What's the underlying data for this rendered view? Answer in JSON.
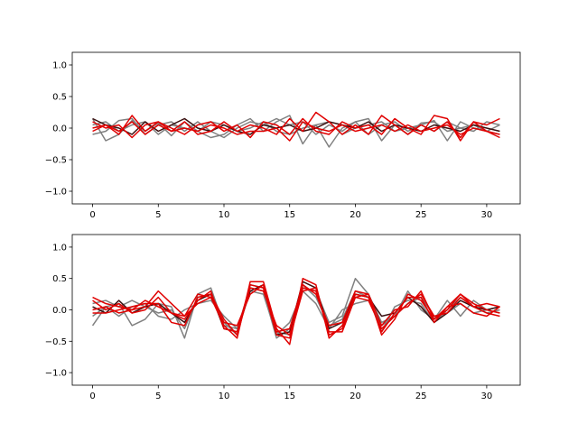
{
  "chart_data": [
    {
      "type": "line",
      "title": "",
      "xlabel": "",
      "ylabel": "",
      "xlim": [
        -1.55,
        32.55
      ],
      "ylim": [
        -1.2,
        1.2
      ],
      "xticks": [
        0,
        5,
        10,
        15,
        20,
        25,
        30
      ],
      "xtick_labels": [
        "0",
        "5",
        "10",
        "15",
        "20",
        "25",
        "30"
      ],
      "yticks": [
        -1.0,
        -0.5,
        0.0,
        0.5,
        1.0
      ],
      "ytick_labels": [
        "−1.0",
        "−0.5",
        "0.0",
        "0.5",
        "1.0"
      ],
      "grid": false,
      "legend": "none",
      "x": [
        0,
        1,
        2,
        3,
        4,
        5,
        6,
        7,
        8,
        9,
        10,
        11,
        12,
        13,
        14,
        15,
        16,
        17,
        18,
        19,
        20,
        21,
        22,
        23,
        24,
        25,
        26,
        27,
        28,
        29,
        30,
        31
      ],
      "series": [
        {
          "color": "#808080",
          "values": [
            0.15,
            -0.2,
            -0.1,
            0.12,
            -0.05,
            0.08,
            -0.12,
            0.1,
            -0.05,
            -0.15,
            -0.1,
            0.05,
            0.15,
            -0.05,
            0.1,
            0.2,
            -0.25,
            0.05,
            -0.3,
            0.0,
            0.1,
            0.15,
            -0.2,
            0.05,
            -0.1,
            0.08,
            0.1,
            -0.05,
            0.0,
            -0.05,
            0.1,
            0.05
          ]
        },
        {
          "color": "#808080",
          "values": [
            -0.1,
            -0.05,
            0.12,
            0.15,
            -0.1,
            0.05,
            0.1,
            -0.05,
            0.1,
            -0.05,
            -0.15,
            0.0,
            0.1,
            0.05,
            0.15,
            0.05,
            0.1,
            -0.1,
            0.05,
            -0.05,
            0.1,
            -0.1,
            0.05,
            0.1,
            -0.05,
            0.05,
            0.12,
            -0.2,
            0.1,
            0.0,
            -0.05,
            -0.1
          ]
        },
        {
          "color": "#808080",
          "values": [
            0.05,
            0.1,
            -0.05,
            0.05,
            0.1,
            -0.1,
            0.05,
            0.0,
            -0.05,
            0.1,
            0.05,
            -0.05,
            0.0,
            0.1,
            -0.05,
            -0.1,
            0.0,
            0.05,
            0.1,
            -0.1,
            0.0,
            0.05,
            0.1,
            -0.05,
            0.0,
            0.05,
            -0.05,
            0.1,
            0.0,
            0.05,
            -0.05,
            0.05
          ]
        },
        {
          "color": "#3a1010",
          "values": [
            0.15,
            0.05,
            0.0,
            -0.1,
            0.1,
            -0.05,
            0.05,
            0.15,
            0.0,
            -0.05,
            0.05,
            -0.05,
            -0.1,
            0.05,
            0.0,
            0.05,
            -0.05,
            0.0,
            0.1,
            0.05,
            0.0,
            0.1,
            -0.05,
            0.05,
            0.0,
            -0.05,
            0.05,
            0.0,
            -0.05,
            0.05,
            0.0,
            -0.05
          ]
        },
        {
          "color": "#e00000",
          "values": [
            -0.05,
            0.05,
            -0.1,
            0.2,
            -0.05,
            0.1,
            -0.05,
            0.1,
            -0.1,
            -0.05,
            0.1,
            -0.05,
            0.05,
            0.0,
            -0.1,
            0.15,
            -0.05,
            0.25,
            0.1,
            -0.1,
            0.05,
            -0.1,
            0.2,
            0.05,
            -0.1,
            0.05,
            -0.05,
            0.1,
            -0.15,
            0.1,
            -0.05,
            -0.1
          ]
        },
        {
          "color": "#e00000",
          "values": [
            0.1,
            0.0,
            0.05,
            -0.15,
            0.05,
            0.1,
            0.0,
            -0.1,
            0.05,
            0.1,
            -0.05,
            0.05,
            -0.15,
            0.1,
            0.05,
            -0.1,
            0.15,
            -0.05,
            -0.1,
            0.1,
            0.0,
            0.05,
            -0.1,
            0.15,
            0.0,
            -0.1,
            0.2,
            0.15,
            -0.2,
            0.1,
            0.05,
            0.15
          ]
        },
        {
          "color": "#e00000",
          "values": [
            0.0,
            0.05,
            -0.05,
            0.1,
            -0.1,
            0.05,
            -0.05,
            0.0,
            -0.05,
            0.05,
            0.0,
            -0.1,
            -0.05,
            -0.05,
            0.0,
            -0.2,
            0.1,
            0.0,
            -0.05,
            0.05,
            -0.05,
            0.0,
            0.05,
            -0.05,
            0.05,
            -0.05,
            0.0,
            0.05,
            -0.1,
            0.0,
            -0.05,
            -0.15
          ]
        }
      ]
    },
    {
      "type": "line",
      "title": "",
      "xlabel": "",
      "ylabel": "",
      "xlim": [
        -1.55,
        32.55
      ],
      "ylim": [
        -1.2,
        1.2
      ],
      "xticks": [
        0,
        5,
        10,
        15,
        20,
        25,
        30
      ],
      "xtick_labels": [
        "0",
        "5",
        "10",
        "15",
        "20",
        "25",
        "30"
      ],
      "yticks": [
        -1.0,
        -0.5,
        0.0,
        0.5,
        1.0
      ],
      "ytick_labels": [
        "−1.0",
        "−0.5",
        "0.0",
        "0.5",
        "1.0"
      ],
      "grid": false,
      "legend": "none",
      "x": [
        0,
        1,
        2,
        3,
        4,
        5,
        6,
        7,
        8,
        9,
        10,
        11,
        12,
        13,
        14,
        15,
        16,
        17,
        18,
        19,
        20,
        21,
        22,
        23,
        24,
        25,
        26,
        27,
        28,
        29,
        30,
        31
      ],
      "series": [
        {
          "color": "#808080",
          "values": [
            -0.25,
            0.05,
            0.1,
            -0.25,
            -0.15,
            0.1,
            0.05,
            -0.45,
            0.25,
            0.35,
            -0.25,
            -0.3,
            0.35,
            0.3,
            -0.45,
            -0.3,
            0.35,
            0.3,
            -0.2,
            -0.1,
            0.5,
            0.25,
            -0.2,
            -0.1,
            0.3,
            0.0,
            -0.15,
            0.15,
            -0.1,
            0.15,
            0.0,
            0.05
          ]
        },
        {
          "color": "#808080",
          "values": [
            0.1,
            0.15,
            0.05,
            0.15,
            0.05,
            -0.05,
            0.0,
            -0.3,
            0.2,
            0.25,
            -0.2,
            -0.4,
            0.4,
            0.35,
            -0.35,
            -0.4,
            0.4,
            0.2,
            -0.25,
            -0.15,
            0.3,
            0.2,
            -0.35,
            0.05,
            0.15,
            0.1,
            -0.2,
            0.0,
            0.2,
            0.05,
            -0.05,
            0.0
          ]
        },
        {
          "color": "#808080",
          "values": [
            -0.1,
            0.05,
            -0.1,
            0.05,
            0.1,
            -0.1,
            -0.15,
            0.0,
            0.1,
            0.15,
            -0.1,
            -0.3,
            0.3,
            0.25,
            -0.4,
            -0.2,
            0.3,
            0.1,
            -0.3,
            0.0,
            0.1,
            0.15,
            -0.25,
            -0.1,
            0.1,
            0.2,
            -0.1,
            -0.05,
            0.1,
            -0.05,
            0.0,
            -0.05
          ]
        },
        {
          "color": "#3a1010",
          "values": [
            0.05,
            -0.05,
            0.15,
            -0.05,
            0.05,
            0.1,
            -0.05,
            -0.2,
            0.15,
            0.25,
            -0.3,
            -0.35,
            0.3,
            0.4,
            -0.4,
            -0.35,
            0.45,
            0.35,
            -0.3,
            -0.2,
            0.25,
            0.2,
            -0.1,
            -0.05,
            0.2,
            0.05,
            -0.2,
            -0.05,
            0.15,
            0.05,
            0.0,
            0.05
          ]
        },
        {
          "color": "#e00000",
          "values": [
            0.2,
            0.1,
            0.05,
            0.0,
            0.05,
            0.3,
            0.1,
            -0.1,
            0.25,
            0.2,
            -0.25,
            -0.45,
            0.45,
            0.45,
            -0.3,
            -0.55,
            0.5,
            0.4,
            -0.45,
            -0.25,
            0.2,
            0.25,
            -0.4,
            -0.15,
            0.25,
            0.15,
            -0.15,
            0.0,
            0.25,
            0.05,
            0.1,
            0.05
          ]
        },
        {
          "color": "#e00000",
          "values": [
            -0.05,
            -0.05,
            0.0,
            0.05,
            0.1,
            0.1,
            -0.2,
            -0.25,
            0.2,
            0.25,
            -0.15,
            -0.4,
            0.35,
            0.3,
            -0.25,
            -0.4,
            0.35,
            0.3,
            -0.35,
            -0.35,
            0.2,
            0.15,
            -0.3,
            -0.1,
            0.1,
            0.25,
            -0.1,
            -0.05,
            0.2,
            0.05,
            -0.05,
            -0.1
          ]
        },
        {
          "color": "#e00000",
          "values": [
            0.0,
            0.05,
            -0.05,
            0.0,
            0.15,
            0.05,
            -0.05,
            -0.1,
            0.1,
            0.2,
            -0.2,
            -0.25,
            0.25,
            0.4,
            -0.35,
            -0.3,
            0.4,
            0.25,
            -0.25,
            -0.2,
            0.3,
            0.25,
            -0.25,
            0.0,
            0.05,
            0.3,
            -0.15,
            0.05,
            0.1,
            -0.05,
            -0.1,
            0.05
          ]
        },
        {
          "color": "#e00000",
          "values": [
            0.15,
            0.0,
            0.1,
            -0.05,
            0.0,
            0.2,
            -0.05,
            -0.15,
            0.15,
            0.3,
            -0.3,
            -0.35,
            0.4,
            0.35,
            -0.4,
            -0.45,
            0.3,
            0.35,
            -0.4,
            -0.3,
            0.25,
            0.2,
            -0.35,
            -0.05,
            0.2,
            0.2,
            -0.2,
            0.05,
            0.25,
            0.1,
            0.0,
            -0.05
          ]
        }
      ]
    }
  ]
}
